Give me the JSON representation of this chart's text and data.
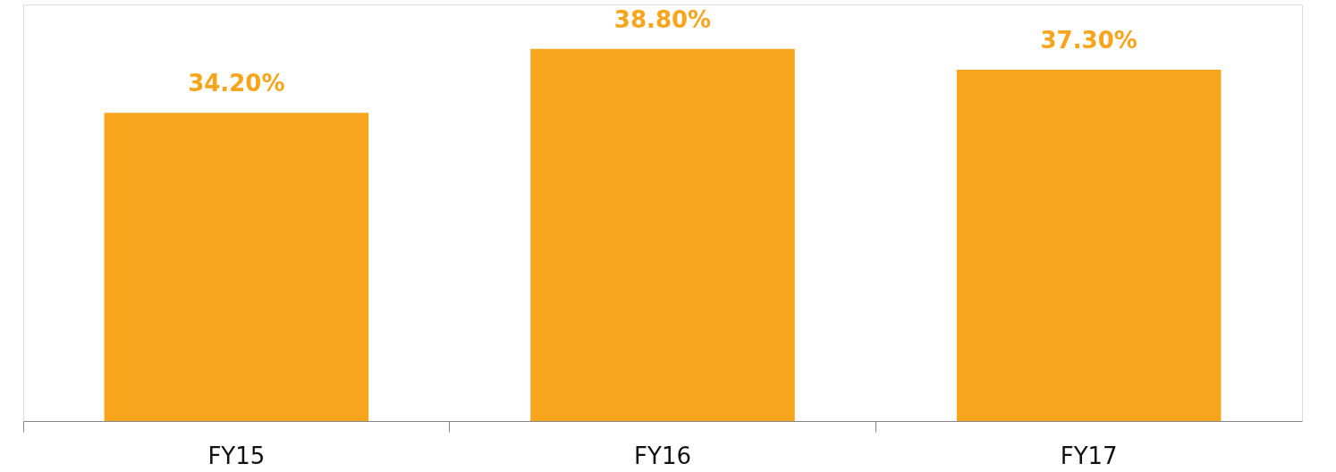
{
  "chart_data": {
    "type": "bar",
    "categories": [
      "FY15",
      "FY16",
      "FY17"
    ],
    "series": [
      {
        "color": "#f7a51d",
        "values": [
          34.2,
          38.8,
          37.3
        ],
        "value_labels": [
          "34.20%",
          "38.80%",
          "37.30%"
        ]
      }
    ],
    "ylim": [
      12,
      42
    ],
    "tick_labels": "x",
    "grid": false
  }
}
